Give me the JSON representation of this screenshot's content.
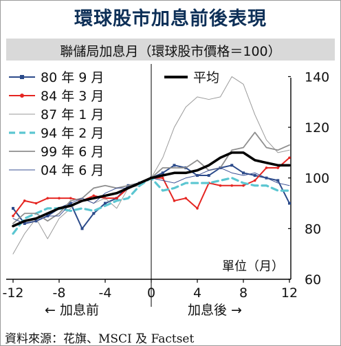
{
  "header": {
    "title": "環球股市加息前後表現",
    "subtitle": "聯儲局加息月（環球股市價格＝100）"
  },
  "legend": {
    "average_label": "平均"
  },
  "annotations": {
    "unit": "單位（月）",
    "before": "← 加息前",
    "after": "加息後 →"
  },
  "source": "資料來源：花旗、MSCI 及 Factset",
  "colors": {
    "title": "#0d2f57",
    "s80": "#2b4a8a",
    "s84": "#e52521",
    "s87": "#9a9a9a",
    "s94": "#5bc6d1",
    "s99": "#8e8e8e",
    "s04": "#3a4f93",
    "avg": "#000000"
  },
  "chart_data": {
    "type": "line",
    "title": "環球股市加息前後表現",
    "subtitle": "聯儲局加息月（環球股市價格＝100）",
    "xlabel": "",
    "ylabel": "單位（月）",
    "x": [
      -12,
      -11,
      -10,
      -9,
      -8,
      -7,
      -6,
      -5,
      -4,
      -3,
      -2,
      -1,
      0,
      1,
      2,
      3,
      4,
      5,
      6,
      7,
      8,
      9,
      10,
      11,
      12
    ],
    "xlim": [
      -12,
      12
    ],
    "ylim": [
      60,
      145
    ],
    "xticks": [
      -12,
      -8,
      -4,
      0,
      4,
      8,
      12
    ],
    "xtick_labels": [
      "-12",
      "-8",
      "-4",
      "0",
      "4",
      "8",
      "12"
    ],
    "yticks": [
      60,
      80,
      100,
      120,
      140
    ],
    "ytick_labels": [
      "60",
      "80",
      "100",
      "120",
      "140"
    ],
    "grid": false,
    "legend_position": "top-left",
    "series": [
      {
        "name": "80 年 9 月",
        "color": "#2b4a8a",
        "style": "marker-square",
        "values": [
          88,
          82,
          83,
          85,
          88,
          90,
          80,
          86,
          90,
          92,
          97,
          98,
          100,
          102,
          105,
          104,
          101,
          101,
          104,
          105,
          102,
          101,
          100,
          99,
          90
        ]
      },
      {
        "name": "84 年 3 月",
        "color": "#e52521",
        "style": "marker-dot",
        "values": [
          85,
          91,
          90,
          92,
          92,
          92,
          91,
          93,
          92,
          92,
          96,
          98,
          100,
          100,
          91,
          92,
          88,
          98,
          97,
          97,
          97,
          99,
          104,
          104,
          108
        ]
      },
      {
        "name": "87 年 1 月",
        "color": "#9a9a9a",
        "style": "thin",
        "values": [
          70,
          78,
          84,
          76,
          84,
          88,
          92,
          90,
          92,
          88,
          96,
          97,
          100,
          108,
          120,
          128,
          132,
          131,
          132,
          140,
          137,
          125,
          115,
          110,
          111
        ]
      },
      {
        "name": "94 年 2 月",
        "color": "#5bc6d1",
        "style": "dashed",
        "values": [
          78,
          84,
          86,
          88,
          88,
          87,
          88,
          87,
          89,
          91,
          92,
          97,
          100,
          95,
          96,
          98,
          98,
          98,
          99,
          100,
          98,
          97,
          97,
          95,
          95
        ]
      },
      {
        "name": "99 年 6 月",
        "color": "#8e8e8e",
        "style": "medium",
        "values": [
          82,
          86,
          86,
          83,
          86,
          91,
          92,
          96,
          97,
          96,
          97,
          98,
          100,
          104,
          104,
          104,
          107,
          103,
          104,
          111,
          112,
          118,
          112,
          111,
          113
        ]
      },
      {
        "name": "04 年 6 月",
        "color": "#3a4f93",
        "style": "thin",
        "values": [
          84,
          82,
          83,
          85,
          85,
          90,
          92,
          90,
          94,
          96,
          96,
          98,
          100,
          99,
          98,
          100,
          101,
          103,
          104,
          102,
          101,
          102,
          100,
          98,
          97
        ]
      },
      {
        "name": "平均",
        "color": "#000000",
        "style": "thick",
        "values": [
          81,
          83,
          84,
          86,
          88,
          89,
          91,
          92,
          93,
          94,
          96,
          98,
          100,
          101,
          102,
          102,
          103,
          105,
          108,
          110,
          110,
          107,
          106,
          105,
          105
        ]
      }
    ]
  }
}
